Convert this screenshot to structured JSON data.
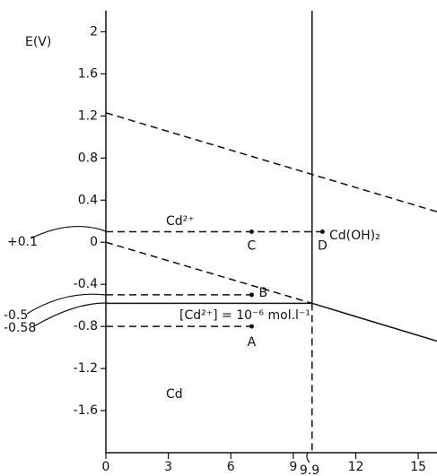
{
  "chart_data": {
    "type": "potential-ph",
    "color": "#111111",
    "xlim": [
      0,
      15.9
    ],
    "xticks": [
      0,
      3,
      6,
      9,
      12,
      15
    ],
    "ylim": [
      -2.0,
      2.2
    ],
    "yticks": [
      2,
      1.6,
      1.2,
      0.8,
      0.4,
      0,
      -0.4,
      -0.8,
      -1.2,
      -1.6
    ],
    "lines": [
      {
        "style": "dashed",
        "x": [
          0,
          15.9
        ],
        "values": [
          1.23,
          0.29
        ]
      },
      {
        "style": "dashed",
        "x": [
          0,
          9.9
        ],
        "values": [
          0,
          -0.58
        ]
      },
      {
        "style": "solid",
        "x": [
          0,
          9.9,
          15.9
        ],
        "values": [
          -0.58,
          -0.58,
          -0.94
        ]
      },
      {
        "style": "solid",
        "x": [
          9.9,
          9.9
        ],
        "values": [
          -0.58,
          2.2
        ]
      },
      {
        "style": "dashed",
        "x": [
          9.9,
          9.9
        ],
        "values": [
          -0.58,
          -2.0
        ]
      },
      {
        "style": "dashed",
        "x": [
          0,
          10.4
        ],
        "values": [
          0.1,
          0.1
        ]
      },
      {
        "style": "dashed",
        "x": [
          0,
          7
        ],
        "values": [
          -0.5,
          -0.5
        ]
      },
      {
        "style": "dashed",
        "x": [
          0,
          7
        ],
        "values": [
          -0.8,
          -0.8
        ]
      }
    ],
    "points": {
      "x": [
        7,
        10.4,
        7,
        7
      ],
      "values": [
        0.1,
        0.1,
        -0.5,
        -0.8
      ]
    },
    "point_labels": [
      "C",
      "D",
      "B",
      "A"
    ],
    "annotations": [
      "E(V)",
      "Cd²⁺",
      "Cd(OH)₂",
      "Cd",
      "[Cd²⁺] = 10⁻⁶ mol.l⁻¹",
      "+0.1",
      "-0.5",
      "-0.58",
      "9.9"
    ]
  }
}
